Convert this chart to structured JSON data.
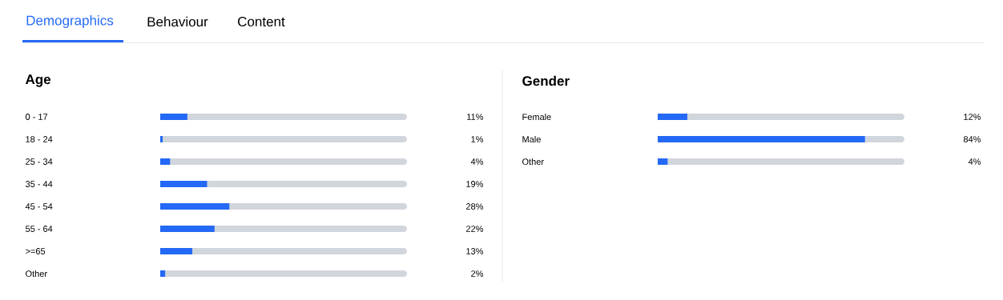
{
  "chart_data": [
    {
      "type": "bar",
      "orientation": "horizontal",
      "title": "Age",
      "annotations": [
        "Demographics",
        "Behaviour",
        "Content"
      ],
      "categories": [
        "0 - 17",
        "18 - 24",
        "25 - 34",
        "35 - 44",
        "45 - 54",
        "55 - 64",
        ">=65",
        "Other"
      ],
      "values": [
        11,
        1,
        4,
        19,
        28,
        22,
        13,
        2
      ],
      "value_labels": [
        "11%",
        "1%",
        "4%",
        "19%",
        "28%",
        "22%",
        "13%",
        "2%"
      ],
      "color": "#2469f5",
      "xlim": [
        0,
        100
      ],
      "tick_labels": "y"
    },
    {
      "type": "bar",
      "orientation": "horizontal",
      "title": "Gender",
      "categories": [
        "Female",
        "Male",
        "Other"
      ],
      "values": [
        12,
        84,
        4
      ],
      "value_labels": [
        "12%",
        "84%",
        "4%"
      ],
      "color": "#2469f5",
      "xlim": [
        0,
        100
      ],
      "tick_labels": "y"
    }
  ]
}
